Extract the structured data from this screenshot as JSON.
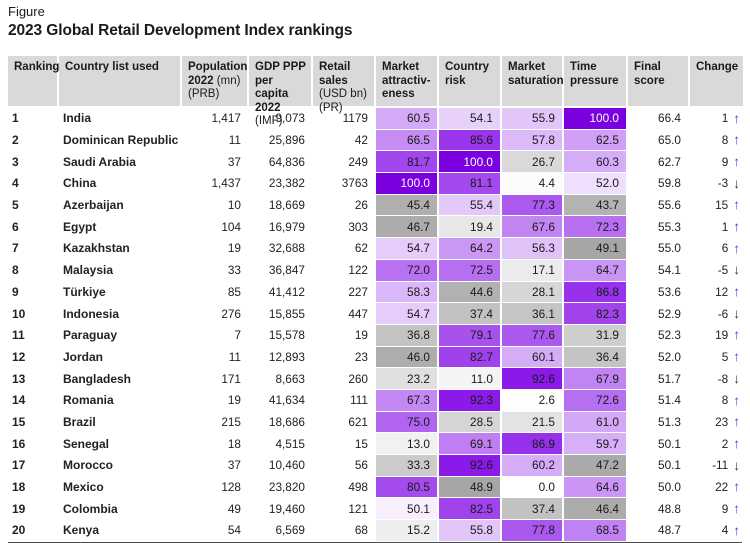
{
  "figure": {
    "kicker": "Figure",
    "title": "2023 Global Retail Development Index rankings"
  },
  "colors": {
    "accent_purple": "#7a00e0",
    "header_bg": "#d9d9d9",
    "up_arrow": "#7d2be0",
    "down_arrow": "#2f2f2f",
    "text": "#1a1a1a",
    "max_cell_text": "#ffffff",
    "table_bottom_border": "#4a4a4a"
  },
  "chart_data": {
    "type": "table",
    "title": "2023 Global Retail Development Index rankings",
    "heatmap_columns": [
      "market_attractiveness",
      "country_risk",
      "market_saturation",
      "time_pressure"
    ],
    "scale": {
      "min": 0,
      "max": 100,
      "threshold": 50,
      "low_color": "#ffffff",
      "mid_gray_color": "#a3a3a3",
      "high_color": "#7a00e0"
    },
    "columns": [
      {
        "id": "ranking",
        "label_lines": [
          [
            {
              "text": "Ranking",
              "bold": true
            }
          ]
        ]
      },
      {
        "id": "country",
        "label_lines": [
          [
            {
              "text": "Country list used",
              "bold": true
            }
          ]
        ]
      },
      {
        "id": "population",
        "label_lines": [
          [
            {
              "text": "Population",
              "bold": true
            }
          ],
          [
            {
              "text": "2022 ",
              "bold": true
            },
            {
              "text": "(mn)",
              "bold": false
            }
          ],
          [
            {
              "text": "(PRB)",
              "bold": false
            }
          ]
        ]
      },
      {
        "id": "gdp_ppp",
        "label_lines": [
          [
            {
              "text": "GDP PPP",
              "bold": true
            }
          ],
          [
            {
              "text": "per capita",
              "bold": true
            }
          ],
          [
            {
              "text": "2022 ",
              "bold": true
            },
            {
              "text": "(IMF)",
              "bold": false
            }
          ]
        ]
      },
      {
        "id": "retail_sales",
        "label_lines": [
          [
            {
              "text": "Retail sales",
              "bold": true
            }
          ],
          [
            {
              "text": "(USD bn)",
              "bold": false
            }
          ],
          [
            {
              "text": "(PR)",
              "bold": false
            }
          ]
        ]
      },
      {
        "id": "market_attractiveness",
        "label_lines": [
          [
            {
              "text": "Market",
              "bold": true
            }
          ],
          [
            {
              "text": "attractiv-",
              "bold": true
            }
          ],
          [
            {
              "text": "eness",
              "bold": true
            }
          ]
        ]
      },
      {
        "id": "country_risk",
        "label_lines": [
          [
            {
              "text": "Country",
              "bold": true
            }
          ],
          [
            {
              "text": "risk",
              "bold": true
            }
          ]
        ]
      },
      {
        "id": "market_saturation",
        "label_lines": [
          [
            {
              "text": "Market",
              "bold": true
            }
          ],
          [
            {
              "text": "saturation",
              "bold": true
            }
          ]
        ]
      },
      {
        "id": "time_pressure",
        "label_lines": [
          [
            {
              "text": "Time",
              "bold": true
            }
          ],
          [
            {
              "text": "pressure",
              "bold": true
            }
          ]
        ]
      },
      {
        "id": "final_score",
        "label_lines": [
          [
            {
              "text": "Final",
              "bold": true
            }
          ],
          [
            {
              "text": "score",
              "bold": true
            }
          ]
        ]
      },
      {
        "id": "change",
        "label_lines": [
          [
            {
              "text": "Change",
              "bold": true
            }
          ]
        ]
      }
    ],
    "rows": [
      {
        "ranking": "1",
        "country": "India",
        "population": "1,417",
        "gdp_ppp": "9,073",
        "retail_sales": "1179",
        "market_attractiveness": 60.5,
        "country_risk": 54.1,
        "market_saturation": 55.9,
        "time_pressure": 100.0,
        "final_score": 66.4,
        "change": 1
      },
      {
        "ranking": "2",
        "country": "Dominican Republic",
        "population": "11",
        "gdp_ppp": "25,896",
        "retail_sales": "42",
        "market_attractiveness": 66.5,
        "country_risk": 85.6,
        "market_saturation": 57.8,
        "time_pressure": 62.5,
        "final_score": 65.0,
        "change": 8
      },
      {
        "ranking": "3",
        "country": "Saudi Arabia",
        "population": "37",
        "gdp_ppp": "64,836",
        "retail_sales": "249",
        "market_attractiveness": 81.7,
        "country_risk": 100.0,
        "market_saturation": 26.7,
        "time_pressure": 60.3,
        "final_score": 62.7,
        "change": 9
      },
      {
        "ranking": "4",
        "country": "China",
        "population": "1,437",
        "gdp_ppp": "23,382",
        "retail_sales": "3763",
        "market_attractiveness": 100.0,
        "country_risk": 81.1,
        "market_saturation": 4.4,
        "time_pressure": 52.0,
        "final_score": 59.8,
        "change": -3
      },
      {
        "ranking": "5",
        "country": "Azerbaijan",
        "population": "10",
        "gdp_ppp": "18,669",
        "retail_sales": "26",
        "market_attractiveness": 45.4,
        "country_risk": 55.4,
        "market_saturation": 77.3,
        "time_pressure": 43.7,
        "final_score": 55.6,
        "change": 15
      },
      {
        "ranking": "6",
        "country": "Egypt",
        "population": "104",
        "gdp_ppp": "16,979",
        "retail_sales": "303",
        "market_attractiveness": 46.7,
        "country_risk": 19.4,
        "market_saturation": 67.6,
        "time_pressure": 72.3,
        "final_score": 55.3,
        "change": 1
      },
      {
        "ranking": "7",
        "country": "Kazakhstan",
        "population": "19",
        "gdp_ppp": "32,688",
        "retail_sales": "62",
        "market_attractiveness": 54.7,
        "country_risk": 64.2,
        "market_saturation": 56.3,
        "time_pressure": 49.1,
        "final_score": 55.0,
        "change": 6
      },
      {
        "ranking": "8",
        "country": "Malaysia",
        "population": "33",
        "gdp_ppp": "36,847",
        "retail_sales": "122",
        "market_attractiveness": 72.0,
        "country_risk": 72.5,
        "market_saturation": 17.1,
        "time_pressure": 64.7,
        "final_score": 54.1,
        "change": -5
      },
      {
        "ranking": "9",
        "country": "Türkiye",
        "population": "85",
        "gdp_ppp": "41,412",
        "retail_sales": "227",
        "market_attractiveness": 58.3,
        "country_risk": 44.6,
        "market_saturation": 28.1,
        "time_pressure": 86.8,
        "final_score": 53.6,
        "change": 12
      },
      {
        "ranking": "10",
        "country": "Indonesia",
        "population": "276",
        "gdp_ppp": "15,855",
        "retail_sales": "447",
        "market_attractiveness": 54.7,
        "country_risk": 37.4,
        "market_saturation": 36.1,
        "time_pressure": 82.3,
        "final_score": 52.9,
        "change": -6
      },
      {
        "ranking": "11",
        "country": "Paraguay",
        "population": "7",
        "gdp_ppp": "15,578",
        "retail_sales": "19",
        "market_attractiveness": 36.8,
        "country_risk": 79.1,
        "market_saturation": 77.6,
        "time_pressure": 31.9,
        "final_score": 52.3,
        "change": 19
      },
      {
        "ranking": "12",
        "country": "Jordan",
        "population": "11",
        "gdp_ppp": "12,893",
        "retail_sales": "23",
        "market_attractiveness": 46.0,
        "country_risk": 82.7,
        "market_saturation": 60.1,
        "time_pressure": 36.4,
        "final_score": 52.0,
        "change": 5
      },
      {
        "ranking": "13",
        "country": "Bangladesh",
        "population": "171",
        "gdp_ppp": "8,663",
        "retail_sales": "260",
        "market_attractiveness": 23.2,
        "country_risk": 11.0,
        "market_saturation": 92.6,
        "time_pressure": 67.9,
        "final_score": 51.7,
        "change": -8
      },
      {
        "ranking": "14",
        "country": "Romania",
        "population": "19",
        "gdp_ppp": "41,634",
        "retail_sales": "111",
        "market_attractiveness": 67.3,
        "country_risk": 92.3,
        "market_saturation": 2.6,
        "time_pressure": 72.6,
        "final_score": 51.4,
        "change": 8
      },
      {
        "ranking": "15",
        "country": "Brazil",
        "population": "215",
        "gdp_ppp": "18,686",
        "retail_sales": "621",
        "market_attractiveness": 75.0,
        "country_risk": 28.5,
        "market_saturation": 21.5,
        "time_pressure": 61.0,
        "final_score": 51.3,
        "change": 23
      },
      {
        "ranking": "16",
        "country": "Senegal",
        "population": "18",
        "gdp_ppp": "4,515",
        "retail_sales": "15",
        "market_attractiveness": 13.0,
        "country_risk": 69.1,
        "market_saturation": 86.9,
        "time_pressure": 59.7,
        "final_score": 50.1,
        "change": 2
      },
      {
        "ranking": "17",
        "country": "Morocco",
        "population": "37",
        "gdp_ppp": "10,460",
        "retail_sales": "56",
        "market_attractiveness": 33.3,
        "country_risk": 92.6,
        "market_saturation": 60.2,
        "time_pressure": 47.2,
        "final_score": 50.1,
        "change": -11
      },
      {
        "ranking": "18",
        "country": "Mexico",
        "population": "128",
        "gdp_ppp": "23,820",
        "retail_sales": "498",
        "market_attractiveness": 80.5,
        "country_risk": 48.9,
        "market_saturation": 0.0,
        "time_pressure": 64.6,
        "final_score": 50.0,
        "change": 22
      },
      {
        "ranking": "19",
        "country": "Colombia",
        "population": "49",
        "gdp_ppp": "19,460",
        "retail_sales": "121",
        "market_attractiveness": 50.1,
        "country_risk": 82.5,
        "market_saturation": 37.4,
        "time_pressure": 46.4,
        "final_score": 48.8,
        "change": 9
      },
      {
        "ranking": "20",
        "country": "Kenya",
        "population": "54",
        "gdp_ppp": "6,569",
        "retail_sales": "68",
        "market_attractiveness": 15.2,
        "country_risk": 55.8,
        "market_saturation": 77.8,
        "time_pressure": 68.5,
        "final_score": 48.7,
        "change": 4
      }
    ]
  }
}
